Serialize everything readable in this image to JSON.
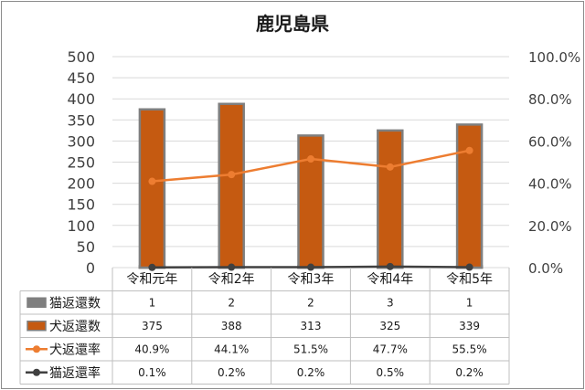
{
  "chart_data": {
    "type": "bar",
    "title": "鹿児島県",
    "categories": [
      "令和元年",
      "令和2年",
      "令和3年",
      "令和4年",
      "令和5年"
    ],
    "y_left": {
      "ticks": [
        "500",
        "450",
        "400",
        "350",
        "300",
        "250",
        "200",
        "150",
        "100",
        "50",
        "0"
      ],
      "ylim": [
        0,
        500
      ]
    },
    "y_right": {
      "ticks": [
        "100.0%",
        "80.0%",
        "60.0%",
        "40.0%",
        "20.0%",
        "0.0%"
      ],
      "ylim": [
        0,
        100
      ]
    },
    "series": [
      {
        "name": "猫返還数",
        "type": "bar",
        "axis": "left",
        "color": "#7f7f7f",
        "values": [
          1,
          2,
          2,
          3,
          1
        ],
        "labels": [
          "1",
          "2",
          "2",
          "3",
          "1"
        ]
      },
      {
        "name": "犬返還数",
        "type": "bar",
        "axis": "left",
        "color": "#c55a11",
        "values": [
          375,
          388,
          313,
          325,
          339
        ],
        "labels": [
          "375",
          "388",
          "313",
          "325",
          "339"
        ]
      },
      {
        "name": "犬返還率",
        "type": "line",
        "axis": "right",
        "color": "#ed7d31",
        "values": [
          40.9,
          44.1,
          51.5,
          47.7,
          55.5
        ],
        "labels": [
          "40.9%",
          "44.1%",
          "51.5%",
          "47.7%",
          "55.5%"
        ]
      },
      {
        "name": "猫返還率",
        "type": "line",
        "axis": "right",
        "color": "#404040",
        "values": [
          0.1,
          0.2,
          0.2,
          0.5,
          0.2
        ],
        "labels": [
          "0.1%",
          "0.2%",
          "0.2%",
          "0.5%",
          "0.2%"
        ]
      }
    ],
    "legend": "data-table",
    "grid": true
  }
}
